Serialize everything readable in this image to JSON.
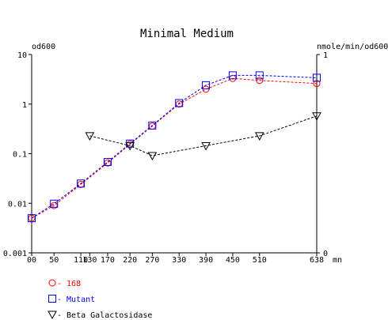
{
  "chart_data": {
    "type": "line",
    "title": "Minimal Medium",
    "left_axis_label": "od600",
    "right_axis_label": "nmole/min/od600",
    "x_unit": "mn",
    "x_ticks": [
      0,
      50,
      110,
      130,
      170,
      220,
      270,
      330,
      390,
      450,
      510,
      638
    ],
    "x_tick_labels": [
      "00",
      "50",
      "110",
      "130",
      "170",
      "220",
      "270",
      "330",
      "390",
      "450",
      "510",
      "638"
    ],
    "xlim": [
      0,
      638
    ],
    "y_left": {
      "scale": "log",
      "ylim": [
        0.001,
        10
      ],
      "ticks": [
        0.001,
        0.01,
        0.1,
        1,
        10
      ],
      "tick_labels": [
        "0.001",
        "0.01",
        "0.1",
        "1",
        "10"
      ]
    },
    "y_right": {
      "scale": "linear",
      "ylim": [
        0,
        1
      ],
      "ticks": [
        0,
        1
      ],
      "tick_labels": [
        "0",
        "1"
      ]
    },
    "series": [
      {
        "name": "168",
        "axis": "left",
        "color": "#ff0000",
        "marker": "circle",
        "x": [
          0,
          50,
          110,
          170,
          220,
          270,
          330,
          390,
          450,
          510,
          638
        ],
        "y": [
          0.005,
          0.009,
          0.024,
          0.065,
          0.155,
          0.36,
          1.0,
          2.0,
          3.3,
          3.0,
          2.6
        ]
      },
      {
        "name": "Mutant",
        "axis": "left",
        "color": "#0000ff",
        "marker": "square",
        "x": [
          0,
          50,
          110,
          170,
          220,
          270,
          330,
          390,
          450,
          510,
          638
        ],
        "y": [
          0.005,
          0.0098,
          0.025,
          0.068,
          0.16,
          0.37,
          1.05,
          2.4,
          3.8,
          3.8,
          3.4
        ]
      },
      {
        "name": "Beta Galactosidase",
        "axis": "right",
        "color": "#000000",
        "marker": "triangle-down",
        "x": [
          130,
          220,
          270,
          390,
          510,
          638
        ],
        "y": [
          0.59,
          0.54,
          0.49,
          0.54,
          0.59,
          0.69
        ]
      }
    ],
    "legend_position": "bottom-left",
    "grid": false
  }
}
